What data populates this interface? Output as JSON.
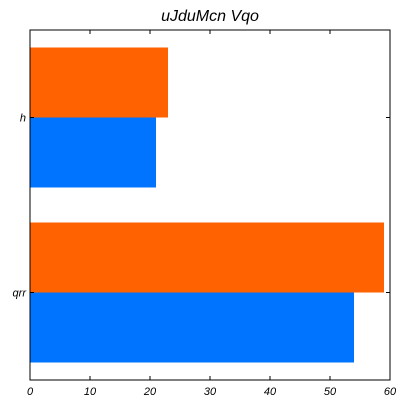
{
  "chart_data": {
    "type": "bar",
    "orientation": "horizontal",
    "title": "uJduMcn Vqo",
    "categories": [
      "qrr",
      "h"
    ],
    "series": [
      {
        "color": "#0074ff",
        "values": [
          54,
          21
        ]
      },
      {
        "color": "#ff6200",
        "values": [
          59,
          23
        ]
      }
    ],
    "xlim": [
      0,
      60
    ],
    "xticks": [
      0,
      10,
      20,
      30,
      40,
      50,
      60
    ],
    "xlabel": "",
    "ylabel": "",
    "grid": false,
    "legend": "none"
  }
}
